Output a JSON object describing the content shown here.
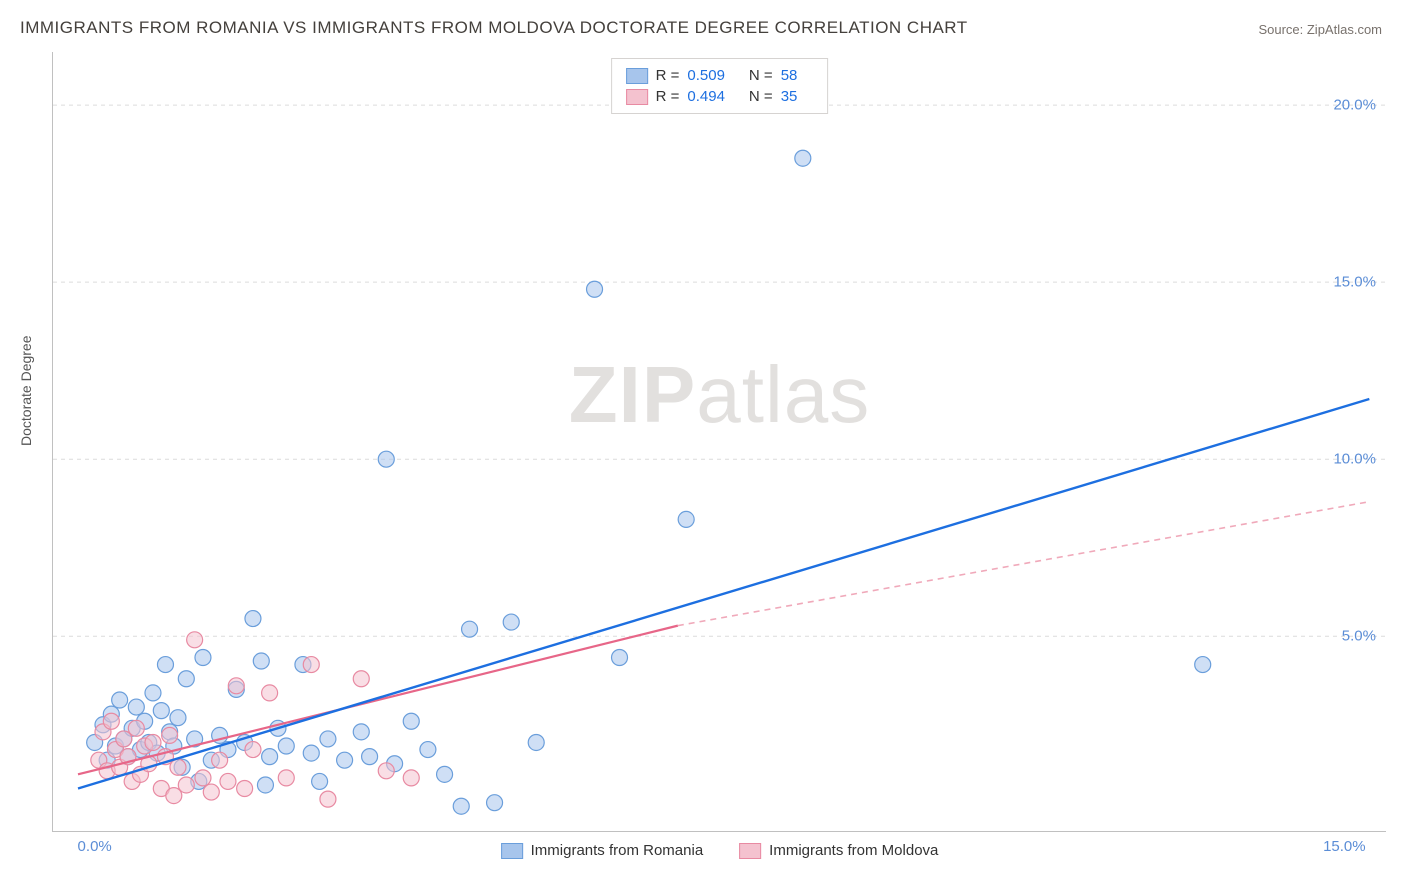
{
  "title": "IMMIGRANTS FROM ROMANIA VS IMMIGRANTS FROM MOLDOVA DOCTORATE DEGREE CORRELATION CHART",
  "source": "Source: ZipAtlas.com",
  "ylabel": "Doctorate Degree",
  "watermark_bold": "ZIP",
  "watermark_rest": "atlas",
  "chart": {
    "type": "scatter",
    "xlim": [
      -0.5,
      15.5
    ],
    "ylim": [
      -0.5,
      21.5
    ],
    "xticks": [
      {
        "v": 0,
        "label": "0.0%"
      },
      {
        "v": 15,
        "label": "15.0%"
      }
    ],
    "yticks": [
      {
        "v": 5,
        "label": "5.0%"
      },
      {
        "v": 10,
        "label": "10.0%"
      },
      {
        "v": 15,
        "label": "15.0%"
      },
      {
        "v": 20,
        "label": "20.0%"
      }
    ],
    "grid_color": "#dcdcdc",
    "background_color": "#ffffff",
    "marker_radius": 8,
    "marker_stroke_width": 1.2,
    "series": [
      {
        "name": "Immigrants from Romania",
        "color_fill": "#a7c5ec",
        "color_stroke": "#6a9edb",
        "fill_opacity": 0.55,
        "R": "0.509",
        "N": "58",
        "trend": {
          "x1": -0.2,
          "y1": 0.7,
          "x2": 15.3,
          "y2": 11.7,
          "color": "#1d6fe0",
          "dash": "",
          "width": 2.4
        },
        "points": [
          [
            0.0,
            2.0
          ],
          [
            0.1,
            2.5
          ],
          [
            0.15,
            1.5
          ],
          [
            0.2,
            2.8
          ],
          [
            0.25,
            1.9
          ],
          [
            0.3,
            3.2
          ],
          [
            0.35,
            2.1
          ],
          [
            0.4,
            1.6
          ],
          [
            0.45,
            2.4
          ],
          [
            0.5,
            3.0
          ],
          [
            0.55,
            1.8
          ],
          [
            0.6,
            2.6
          ],
          [
            0.65,
            2.0
          ],
          [
            0.7,
            3.4
          ],
          [
            0.75,
            1.7
          ],
          [
            0.8,
            2.9
          ],
          [
            0.85,
            4.2
          ],
          [
            0.9,
            2.3
          ],
          [
            0.95,
            1.9
          ],
          [
            1.0,
            2.7
          ],
          [
            1.1,
            3.8
          ],
          [
            1.2,
            2.1
          ],
          [
            1.3,
            4.4
          ],
          [
            1.4,
            1.5
          ],
          [
            1.5,
            2.2
          ],
          [
            1.6,
            1.8
          ],
          [
            1.7,
            3.5
          ],
          [
            1.8,
            2.0
          ],
          [
            1.9,
            5.5
          ],
          [
            2.0,
            4.3
          ],
          [
            2.1,
            1.6
          ],
          [
            2.2,
            2.4
          ],
          [
            2.3,
            1.9
          ],
          [
            2.5,
            4.2
          ],
          [
            2.6,
            1.7
          ],
          [
            2.8,
            2.1
          ],
          [
            3.0,
            1.5
          ],
          [
            3.2,
            2.3
          ],
          [
            3.3,
            1.6
          ],
          [
            3.5,
            10.0
          ],
          [
            3.6,
            1.4
          ],
          [
            3.8,
            2.6
          ],
          [
            4.0,
            1.8
          ],
          [
            4.2,
            1.1
          ],
          [
            4.4,
            0.2
          ],
          [
            4.5,
            5.2
          ],
          [
            4.8,
            0.3
          ],
          [
            5.0,
            5.4
          ],
          [
            5.3,
            2.0
          ],
          [
            6.0,
            14.8
          ],
          [
            6.3,
            4.4
          ],
          [
            7.1,
            8.3
          ],
          [
            8.5,
            18.5
          ],
          [
            13.3,
            4.2
          ],
          [
            1.05,
            1.3
          ],
          [
            1.25,
            0.9
          ],
          [
            2.05,
            0.8
          ],
          [
            2.7,
            0.9
          ]
        ]
      },
      {
        "name": "Immigrants from Moldova",
        "color_fill": "#f4c2cf",
        "color_stroke": "#e88aa2",
        "fill_opacity": 0.55,
        "R": "0.494",
        "N": "35",
        "trend_solid": {
          "x1": -0.2,
          "y1": 1.1,
          "x2": 7.0,
          "y2": 5.3,
          "color": "#e76688",
          "dash": "",
          "width": 2.2
        },
        "trend_dash": {
          "x1": 7.0,
          "y1": 5.3,
          "x2": 15.3,
          "y2": 8.8,
          "color": "#f0a9ba",
          "dash": "6,5",
          "width": 1.6
        },
        "points": [
          [
            0.05,
            1.5
          ],
          [
            0.1,
            2.3
          ],
          [
            0.15,
            1.2
          ],
          [
            0.2,
            2.6
          ],
          [
            0.25,
            1.8
          ],
          [
            0.3,
            1.3
          ],
          [
            0.35,
            2.1
          ],
          [
            0.4,
            1.6
          ],
          [
            0.45,
            0.9
          ],
          [
            0.5,
            2.4
          ],
          [
            0.55,
            1.1
          ],
          [
            0.6,
            1.9
          ],
          [
            0.65,
            1.4
          ],
          [
            0.7,
            2.0
          ],
          [
            0.8,
            0.7
          ],
          [
            0.85,
            1.6
          ],
          [
            0.9,
            2.2
          ],
          [
            0.95,
            0.5
          ],
          [
            1.0,
            1.3
          ],
          [
            1.1,
            0.8
          ],
          [
            1.2,
            4.9
          ],
          [
            1.3,
            1.0
          ],
          [
            1.4,
            0.6
          ],
          [
            1.5,
            1.5
          ],
          [
            1.6,
            0.9
          ],
          [
            1.7,
            3.6
          ],
          [
            1.8,
            0.7
          ],
          [
            1.9,
            1.8
          ],
          [
            2.1,
            3.4
          ],
          [
            2.3,
            1.0
          ],
          [
            2.6,
            4.2
          ],
          [
            2.8,
            0.4
          ],
          [
            3.2,
            3.8
          ],
          [
            3.5,
            1.2
          ],
          [
            3.8,
            1.0
          ]
        ]
      }
    ],
    "legend": {
      "labels": {
        "R": "R =",
        "N": "N ="
      }
    },
    "footer": [
      {
        "label": "Immigrants from Romania",
        "fill": "#a7c5ec",
        "stroke": "#6a9edb"
      },
      {
        "label": "Immigrants from Moldova",
        "fill": "#f4c2cf",
        "stroke": "#e88aa2"
      }
    ]
  }
}
